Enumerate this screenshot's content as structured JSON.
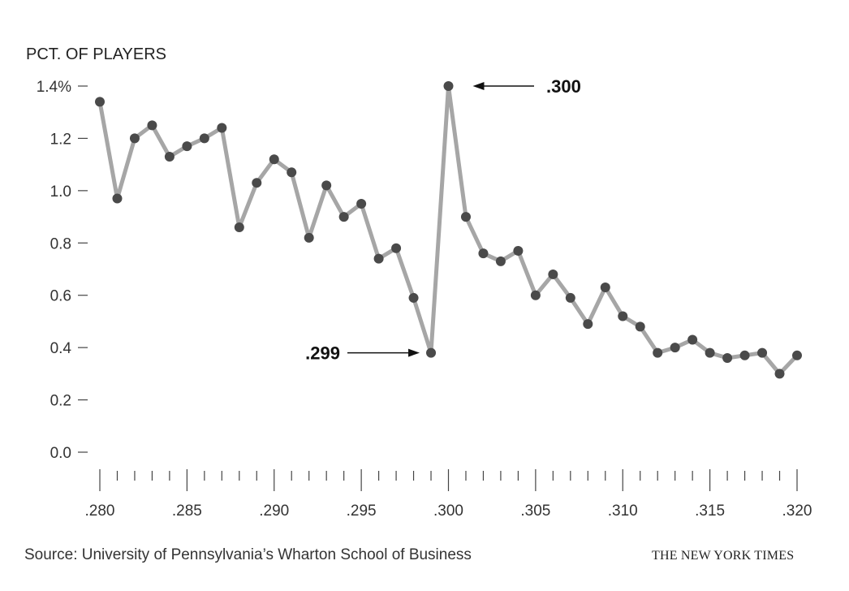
{
  "chart_data": {
    "type": "line",
    "ylabel": "PCT. OF PLAYERS",
    "ylim": [
      0,
      1.4
    ],
    "yticks": [
      {
        "value": 0.0,
        "label": "0.0"
      },
      {
        "value": 0.2,
        "label": "0.2"
      },
      {
        "value": 0.4,
        "label": "0.4"
      },
      {
        "value": 0.6,
        "label": "0.6"
      },
      {
        "value": 0.8,
        "label": "0.8"
      },
      {
        "value": 1.0,
        "label": "1.0"
      },
      {
        "value": 1.2,
        "label": "1.2"
      },
      {
        "value": 1.4,
        "label": "1.4%"
      }
    ],
    "xlim": [
      0.28,
      0.32
    ],
    "xticks": [
      {
        "value": 0.28,
        "label": ".280"
      },
      {
        "value": 0.285,
        "label": ".285"
      },
      {
        "value": 0.29,
        "label": ".290"
      },
      {
        "value": 0.295,
        "label": ".295"
      },
      {
        "value": 0.3,
        "label": ".300"
      },
      {
        "value": 0.305,
        "label": ".305"
      },
      {
        "value": 0.31,
        "label": ".310"
      },
      {
        "value": 0.315,
        "label": ".315"
      },
      {
        "value": 0.32,
        "label": ".320"
      }
    ],
    "series": [
      {
        "x": [
          0.28,
          0.281,
          0.282,
          0.283,
          0.284,
          0.285,
          0.286,
          0.287,
          0.288,
          0.289,
          0.29,
          0.291,
          0.292,
          0.293,
          0.294,
          0.295,
          0.296,
          0.297,
          0.298,
          0.299,
          0.3,
          0.301,
          0.302,
          0.303,
          0.304,
          0.305,
          0.306,
          0.307,
          0.308,
          0.309,
          0.31,
          0.311,
          0.312,
          0.313,
          0.314,
          0.315,
          0.316,
          0.317,
          0.318,
          0.319,
          0.32
        ],
        "values": [
          1.34,
          0.97,
          1.2,
          1.25,
          1.13,
          1.17,
          1.2,
          1.24,
          0.86,
          1.03,
          1.12,
          1.07,
          0.82,
          1.02,
          0.9,
          0.95,
          0.74,
          0.78,
          0.59,
          0.38,
          1.4,
          0.9,
          0.76,
          0.73,
          0.77,
          0.6,
          0.68,
          0.59,
          0.49,
          0.63,
          0.52,
          0.48,
          0.38,
          0.4,
          0.43,
          0.38,
          0.36,
          0.37,
          0.38,
          0.3,
          0.37
        ]
      }
    ],
    "annotations": [
      {
        "text": ".300",
        "x": 0.3,
        "y": 1.4
      },
      {
        "text": ".299",
        "x": 0.299,
        "y": 0.38
      }
    ],
    "grid": false,
    "line_color": "#a6a6a6",
    "marker_color": "#4a4a4a"
  },
  "footer": {
    "source": "Source: University of Pennsylvania’s Wharton School of Business",
    "brand": "THE NEW YORK TIMES"
  }
}
